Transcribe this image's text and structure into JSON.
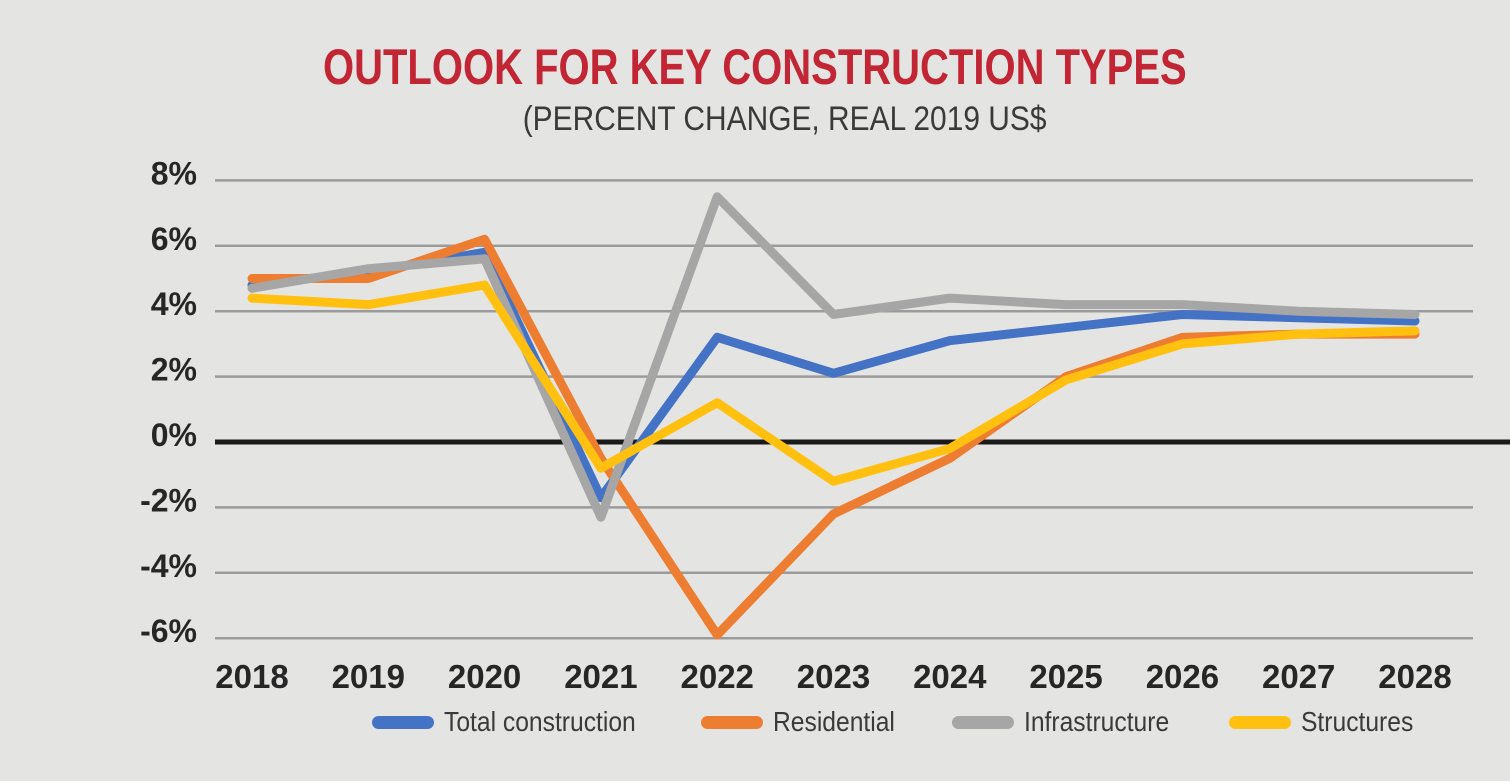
{
  "page": {
    "background_color": "#e4e5e3",
    "title_color": "#c22533",
    "axis_text_color": "#262626",
    "gridline_color": "#9b9b9b",
    "zero_line_color": "#1a1a1a"
  },
  "chart_data": {
    "type": "line",
    "title": "OUTLOOK FOR KEY CONSTRUCTION TYPES",
    "subtitle": "(PERCENT CHANGE, REAL 2019 US$",
    "xlabel": "",
    "ylabel": "",
    "ylim": [
      -6,
      8
    ],
    "grid": true,
    "legend_position": "bottom",
    "categories": [
      "2018",
      "2019",
      "2020",
      "2021",
      "2022",
      "2023",
      "2024",
      "2025",
      "2026",
      "2027",
      "2028"
    ],
    "y_ticks": [
      {
        "label": "8%",
        "value": 8
      },
      {
        "label": "6%",
        "value": 6
      },
      {
        "label": "4%",
        "value": 4
      },
      {
        "label": "2%",
        "value": 2
      },
      {
        "label": "0%",
        "value": 0
      },
      {
        "label": "-2%",
        "value": -2
      },
      {
        "label": "-4%",
        "value": -4
      },
      {
        "label": "-6%",
        "value": -6
      }
    ],
    "series": [
      {
        "name": "Total construction",
        "color": "#4472c4",
        "values": [
          4.8,
          5.2,
          5.8,
          -1.7,
          3.2,
          2.1,
          3.1,
          3.5,
          3.9,
          3.8,
          3.7
        ]
      },
      {
        "name": "Residential",
        "color": "#ed7d31",
        "values": [
          5.0,
          5.0,
          6.2,
          -0.5,
          -5.9,
          -2.2,
          -0.5,
          2.0,
          3.2,
          3.3,
          3.3
        ]
      },
      {
        "name": "Infrastructure",
        "color": "#a6a6a6",
        "values": [
          4.7,
          5.3,
          5.6,
          -2.3,
          7.5,
          3.9,
          4.4,
          4.2,
          4.2,
          4.0,
          3.9
        ]
      },
      {
        "name": "Structures",
        "color": "#ffc010",
        "values": [
          4.4,
          4.2,
          4.8,
          -0.8,
          1.2,
          -1.2,
          -0.2,
          1.9,
          3.0,
          3.3,
          3.4
        ]
      }
    ]
  }
}
